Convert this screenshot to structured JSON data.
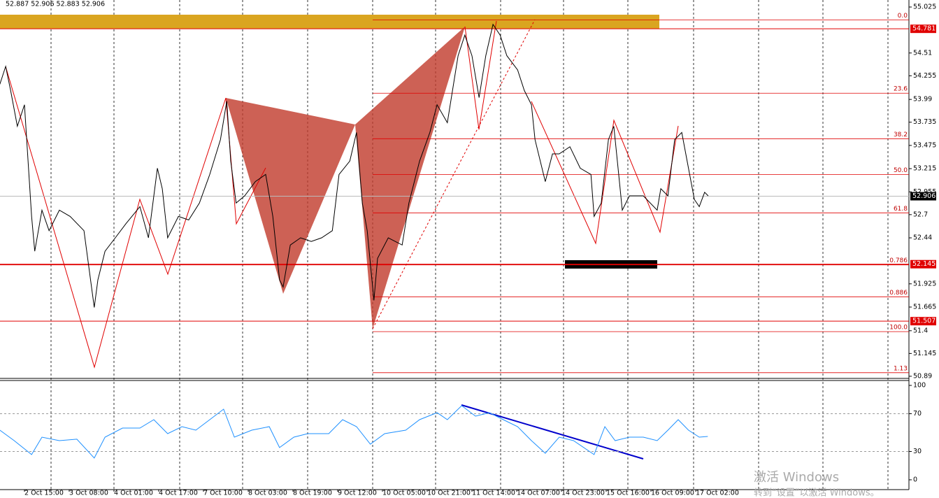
{
  "header": "52.887 52.906 52.883 52.906",
  "watermark": {
    "title": "激活 Windows",
    "subtitle": "转到“设置”以激活 Windows。"
  },
  "chart_data": [
    {
      "type": "line",
      "color": "#000000",
      "xlim": [
        -0.547,
        19.766
      ],
      "xticks": [
        {
          "value": 0,
          "label": "2 Oct 15:00"
        },
        {
          "value": 1,
          "label": "3 Oct 08:00"
        },
        {
          "value": 2,
          "label": "4 Oct 01:00"
        },
        {
          "value": 3,
          "label": "4 Oct 17:00"
        },
        {
          "value": 4,
          "label": "7 Oct 10:00"
        },
        {
          "value": 5,
          "label": "8 Oct 03:00"
        },
        {
          "value": 6,
          "label": "8 Oct 19:00"
        },
        {
          "value": 7,
          "label": "9 Oct 12:00"
        },
        {
          "value": 8,
          "label": "10 Oct 05:00"
        },
        {
          "value": 9,
          "label": "10 Oct 21:00"
        },
        {
          "value": 10,
          "label": "11 Oct 14:00"
        },
        {
          "value": 11,
          "label": "14 Oct 07:00"
        },
        {
          "value": 12,
          "label": "14 Oct 23:00"
        },
        {
          "value": 13,
          "label": "15 Oct 16:00"
        },
        {
          "value": 14,
          "label": "16 Oct 09:00"
        },
        {
          "value": 15,
          "label": "17 Oct 02:00"
        }
      ],
      "ylim": [
        50.866,
        55.08
      ],
      "yticks": [
        55.025,
        54.51,
        54.255,
        53.99,
        53.735,
        53.475,
        53.215,
        52.955,
        52.7,
        52.44,
        51.925,
        51.665,
        51.4,
        51.145,
        50.89
      ],
      "x": [
        -0.55,
        -0.42,
        -0.31,
        -0.16,
        0,
        0.16,
        0.23,
        0.39,
        0.55,
        0.78,
        1.02,
        1.33,
        1.56,
        1.64,
        1.8,
        2.03,
        2.27,
        2.58,
        2.77,
        2.97,
        3.08,
        3.2,
        3.44,
        3.67,
        3.91,
        4.14,
        4.38,
        4.52,
        4.61,
        4.73,
        4.92,
        5.16,
        5.39,
        5.55,
        5.7,
        5.78,
        5.94,
        6.17,
        6.41,
        6.64,
        6.88,
        7.03,
        7.27,
        7.42,
        7.55,
        7.66,
        7.81,
        7.89,
        8.13,
        8.44,
        8.59,
        8.83,
        9.06,
        9.22,
        9.45,
        9.69,
        9.84,
        10.0,
        10.16,
        10.31,
        10.47,
        10.63,
        10.78,
        11.02,
        11.17,
        11.33,
        11.41,
        11.64,
        11.8,
        11.95,
        12.19,
        12.42,
        12.66,
        12.73,
        12.89,
        13.05,
        13.17,
        13.28,
        13.36,
        13.52,
        13.83,
        14.14,
        14.22,
        14.38,
        14.53,
        14.69,
        14.84,
        14.97,
        15.08,
        15.2,
        15.28
      ],
      "values": [
        54.16,
        54.36,
        54.09,
        53.69,
        53.93,
        52.68,
        52.29,
        52.75,
        52.52,
        52.75,
        52.68,
        52.52,
        51.66,
        51.97,
        52.29,
        52.44,
        52.6,
        52.79,
        52.44,
        53.22,
        52.99,
        52.44,
        52.68,
        52.64,
        52.83,
        53.15,
        53.54,
        53.97,
        53.3,
        52.83,
        52.91,
        53.07,
        53.15,
        52.68,
        51.97,
        51.89,
        52.36,
        52.44,
        52.4,
        52.44,
        52.52,
        53.15,
        53.3,
        53.62,
        52.83,
        52.52,
        51.74,
        52.21,
        52.44,
        52.36,
        52.83,
        53.3,
        53.62,
        53.93,
        53.73,
        54.48,
        54.71,
        54.48,
        54.01,
        54.48,
        54.83,
        54.71,
        54.48,
        54.32,
        54.09,
        53.93,
        53.54,
        53.07,
        53.38,
        53.38,
        53.46,
        53.22,
        53.15,
        52.68,
        52.83,
        53.54,
        53.69,
        53.15,
        52.75,
        52.91,
        52.91,
        52.75,
        52.99,
        52.91,
        53.54,
        53.62,
        53.22,
        52.87,
        52.79,
        52.95,
        52.91
      ],
      "fib_labels": [
        "0.0",
        "23.6",
        "38.2",
        "50.0",
        "61.8",
        "0.786",
        "0.886",
        "100.0",
        "1.13"
      ],
      "fib_prices": [
        54.88,
        54.06,
        53.55,
        53.15,
        52.72,
        52.14,
        51.78,
        51.39,
        50.93
      ],
      "price_lines": [
        54.781,
        52.145,
        51.507
      ],
      "current_price": 52.906
    },
    {
      "type": "line",
      "color": "#1e90ff",
      "xlim": [
        -0.547,
        19.766
      ],
      "ylim": [
        -10.4,
        105.2
      ],
      "yticks": [
        100,
        70,
        30,
        0
      ],
      "x": [
        -0.55,
        -0.23,
        0.16,
        0.39,
        0.78,
        1.17,
        1.56,
        1.8,
        2.19,
        2.58,
        2.89,
        3.2,
        3.52,
        3.83,
        4.14,
        4.45,
        4.69,
        5.08,
        5.47,
        5.7,
        6.02,
        6.33,
        6.8,
        7.11,
        7.42,
        7.73,
        8.05,
        8.52,
        8.83,
        9.22,
        9.45,
        9.77,
        10.08,
        10.39,
        10.7,
        11.02,
        11.33,
        11.64,
        11.95,
        12.27,
        12.73,
        12.97,
        13.2,
        13.52,
        13.83,
        14.14,
        14.38,
        14.61,
        14.84,
        15.08,
        15.27
      ],
      "values": [
        52.6,
        41.5,
        26.7,
        45.2,
        41.5,
        43.0,
        23.0,
        45.2,
        54.8,
        54.8,
        63.7,
        48.9,
        56.3,
        52.6,
        63.7,
        74.8,
        45.2,
        52.6,
        56.3,
        34.1,
        45.2,
        48.9,
        48.9,
        63.7,
        56.3,
        37.8,
        48.9,
        52.6,
        63.7,
        71.1,
        63.7,
        78.5,
        67.4,
        71.1,
        63.7,
        56.3,
        41.5,
        28.1,
        45.2,
        41.5,
        26.7,
        56.3,
        41.5,
        45.2,
        45.2,
        41.5,
        52.6,
        63.7,
        52.6,
        45.2,
        45.9
      ]
    }
  ]
}
